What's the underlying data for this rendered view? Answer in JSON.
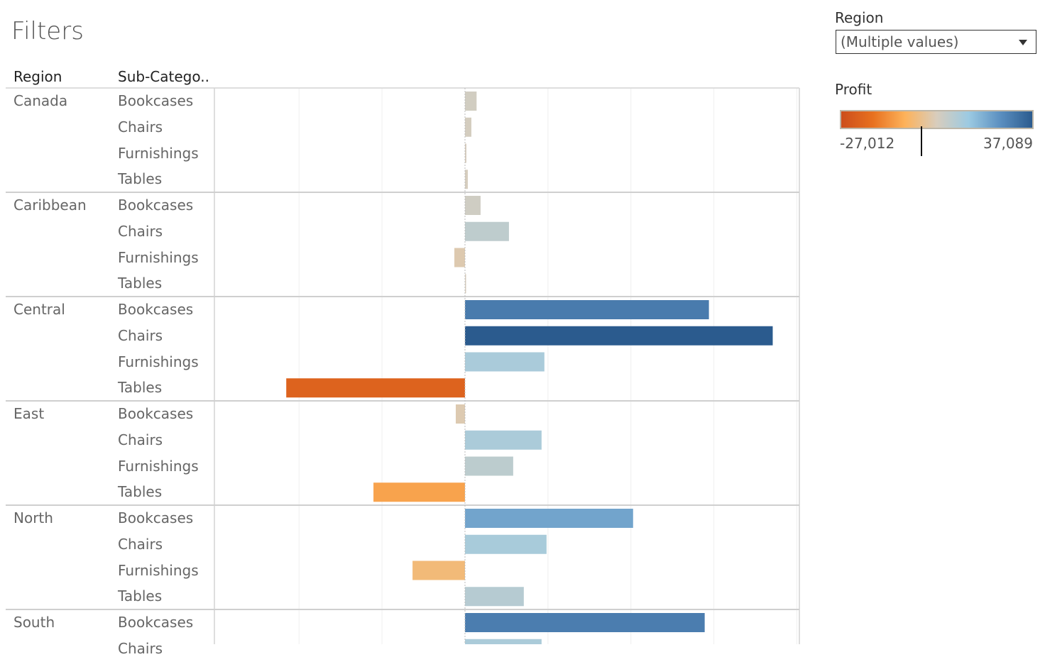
{
  "dashboard": {
    "title": "Filters"
  },
  "filter": {
    "label": "Region",
    "selected": "(Multiple values)"
  },
  "legend": {
    "title": "Profit",
    "min_label": "-27,012",
    "max_label": "37,089",
    "min": -27012,
    "max": 37089,
    "colors": [
      "#cc4e1c",
      "#e8711f",
      "#fdb25a",
      "#d8cdbd",
      "#9ccae2",
      "#5b8fc0",
      "#2b5b8e"
    ]
  },
  "chart_data": {
    "type": "bar",
    "orientation": "horizontal",
    "row_headers": [
      "Region",
      "Sub-Catego.."
    ],
    "xlim": [
      -30200,
      40300
    ],
    "grid": true,
    "gridlines": [
      -20000,
      -10000,
      0,
      10000,
      20000,
      30000,
      40000
    ],
    "groups": [
      {
        "region": "Canada",
        "rows": [
          {
            "sub": "Bookcases",
            "value": 1400
          },
          {
            "sub": "Chairs",
            "value": 770
          },
          {
            "sub": "Furnishings",
            "value": 170
          },
          {
            "sub": "Tables",
            "value": 340
          }
        ]
      },
      {
        "region": "Caribbean",
        "rows": [
          {
            "sub": "Bookcases",
            "value": 1880
          },
          {
            "sub": "Chairs",
            "value": 5300
          },
          {
            "sub": "Furnishings",
            "value": -1280
          },
          {
            "sub": "Tables",
            "value": 90
          }
        ]
      },
      {
        "region": "Central",
        "rows": [
          {
            "sub": "Bookcases",
            "value": 29400
          },
          {
            "sub": "Chairs",
            "value": 37089
          },
          {
            "sub": "Furnishings",
            "value": 9570
          },
          {
            "sub": "Tables",
            "value": -21540
          }
        ]
      },
      {
        "region": "East",
        "rows": [
          {
            "sub": "Bookcases",
            "value": -1110
          },
          {
            "sub": "Chairs",
            "value": 9230
          },
          {
            "sub": "Furnishings",
            "value": 5810
          },
          {
            "sub": "Tables",
            "value": -11030
          }
        ]
      },
      {
        "region": "North",
        "rows": [
          {
            "sub": "Bookcases",
            "value": 20260
          },
          {
            "sub": "Chairs",
            "value": 9830
          },
          {
            "sub": "Furnishings",
            "value": -6320
          },
          {
            "sub": "Tables",
            "value": 7090
          }
        ]
      },
      {
        "region": "South",
        "rows": [
          {
            "sub": "Bookcases",
            "value": 28890
          },
          {
            "sub": "Chairs",
            "value": 9230
          }
        ]
      }
    ]
  }
}
